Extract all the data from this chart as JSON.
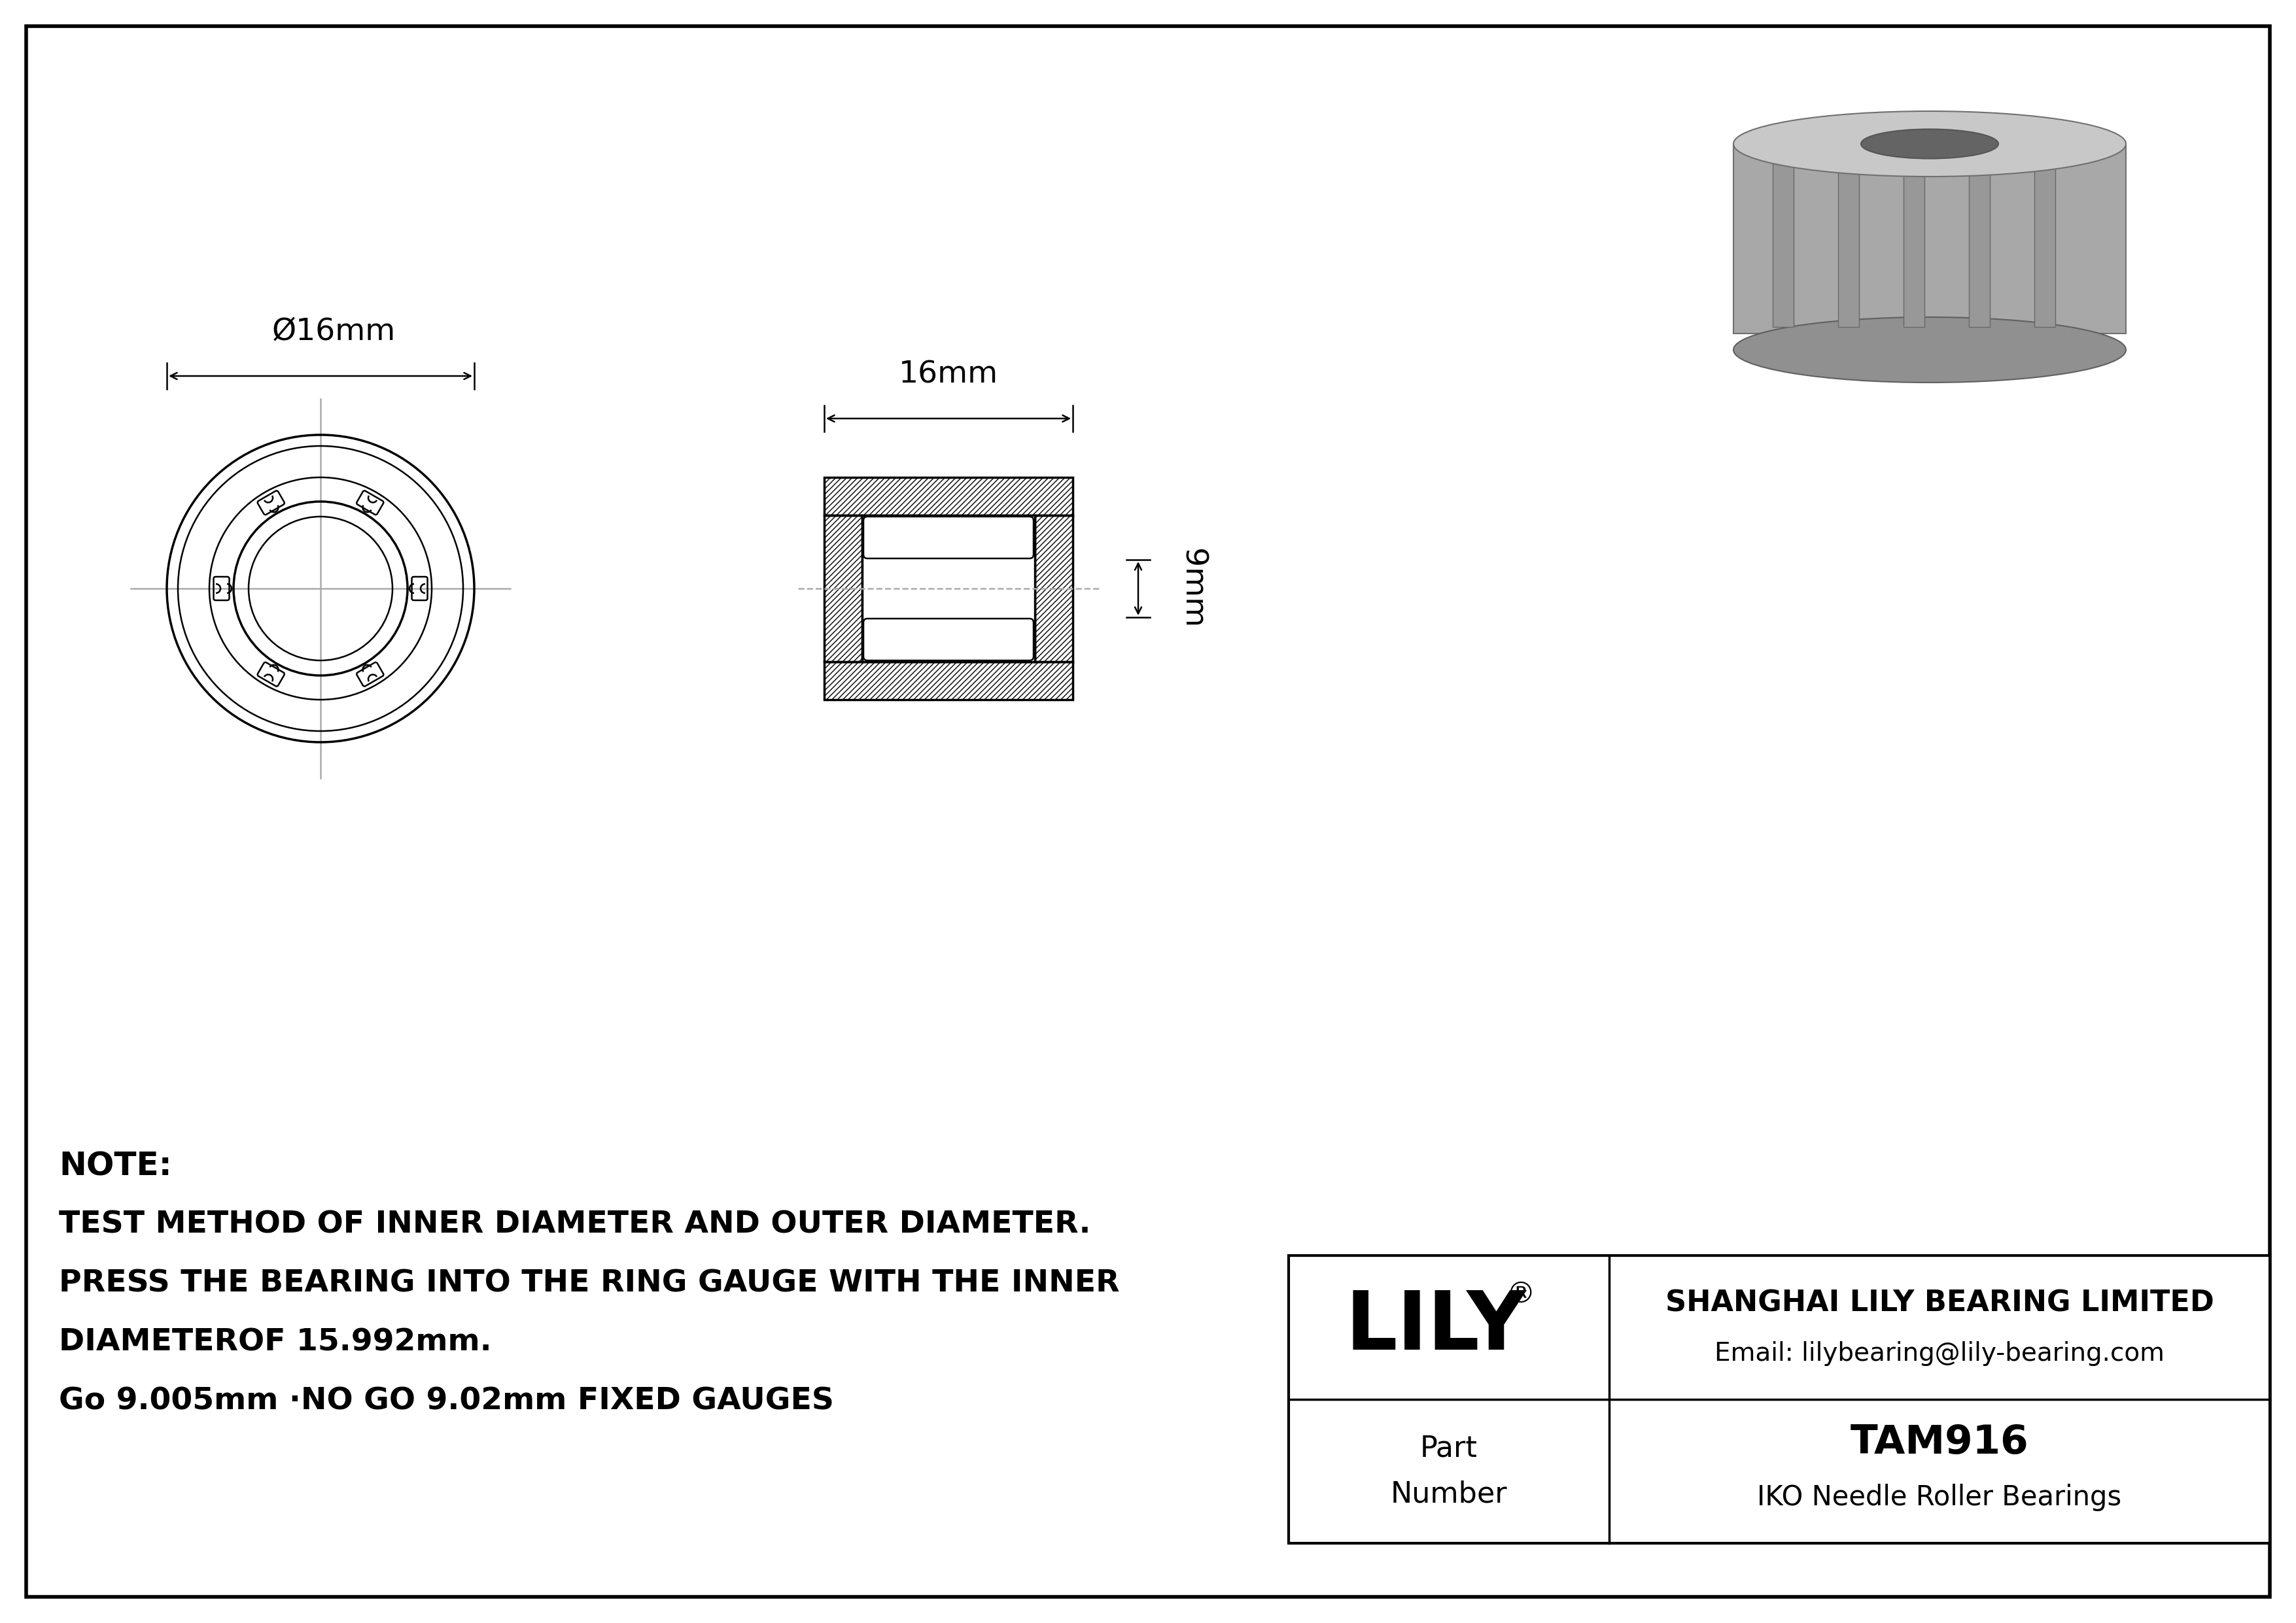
{
  "bg_color": "#ffffff",
  "line_color": "#000000",
  "note_lines": [
    "NOTE:",
    "TEST METHOD OF INNER DIAMETER AND OUTER DIAMETER.",
    "PRESS THE BEARING INTO THE RING GAUGE WITH THE INNER",
    "DIAMETEROF 15.992mm.",
    "Go 9.005mm ·NO GO 9.02mm FIXED GAUGES"
  ],
  "company_name": "SHANGHAI LILY BEARING LIMITED",
  "company_email": "Email: lilybearing@lily-bearing.com",
  "part_number_label": "Part\nNumber",
  "part_number": "TAM916",
  "part_type": "IKO Needle Roller Bearings",
  "lily_logo": "LILY",
  "dim_outer": "Ø16mm",
  "dim_width": "16mm",
  "dim_height": "9mm"
}
